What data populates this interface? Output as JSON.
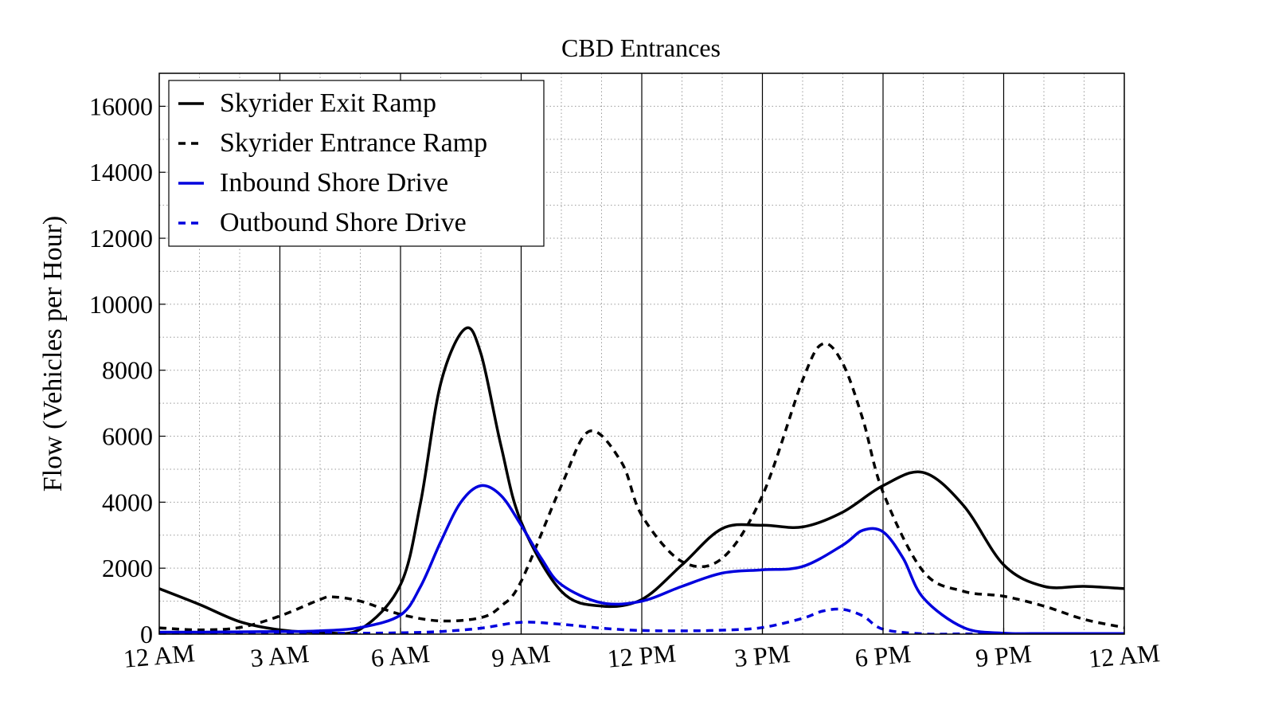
{
  "chart_data": {
    "type": "line",
    "title": "CBD Entrances",
    "xlabel": "",
    "ylabel": "Flow (Vehicles per Hour)",
    "xlim": [
      0,
      24
    ],
    "ylim": [
      0,
      17000
    ],
    "x_ticks": [
      0,
      3,
      6,
      9,
      12,
      15,
      18,
      21,
      24
    ],
    "x_tick_labels": [
      "12 AM",
      "3 AM",
      "6 AM",
      "9 AM",
      "12 PM",
      "3 PM",
      "6 PM",
      "9 PM",
      "12 AM"
    ],
    "y_ticks": [
      0,
      2000,
      4000,
      6000,
      8000,
      10000,
      12000,
      14000,
      16000
    ],
    "y_tick_labels": [
      "0",
      "2000",
      "4000",
      "6000",
      "8000",
      "10000",
      "12000",
      "14000",
      "16000"
    ],
    "grid": true,
    "legend_position": "top-left",
    "series": [
      {
        "name": "Skyrider Exit Ramp",
        "color": "#000000",
        "dash": "solid",
        "x": [
          0,
          1,
          2,
          3,
          4,
          5,
          6,
          6.5,
          7,
          7.6,
          8,
          8.5,
          9,
          10,
          11,
          12,
          13,
          14,
          15,
          16,
          17,
          18,
          19,
          20,
          21,
          22,
          23,
          24
        ],
        "y": [
          1380,
          900,
          380,
          130,
          60,
          150,
          1500,
          4000,
          7600,
          9250,
          8500,
          5700,
          3400,
          1300,
          850,
          1050,
          2100,
          3200,
          3300,
          3250,
          3700,
          4500,
          4900,
          3900,
          2100,
          1450,
          1450,
          1380
        ]
      },
      {
        "name": "Skyrider Entrance Ramp",
        "color": "#000000",
        "dash": "dashed",
        "x": [
          0,
          1,
          2,
          3,
          4,
          4.3,
          5,
          6,
          7,
          8,
          8.5,
          9,
          10,
          10.7,
          11.5,
          12,
          13,
          14,
          15,
          16,
          16.5,
          17,
          17.5,
          18,
          19,
          20,
          21,
          22,
          23,
          24
        ],
        "y": [
          190,
          130,
          200,
          550,
          1050,
          1130,
          1000,
          600,
          400,
          500,
          850,
          1600,
          4500,
          6150,
          5200,
          3600,
          2200,
          2300,
          4200,
          7700,
          8800,
          8200,
          6500,
          4300,
          1900,
          1300,
          1150,
          850,
          450,
          200
        ]
      },
      {
        "name": "Inbound Shore Drive",
        "color": "#0000dd",
        "dash": "solid",
        "x": [
          0,
          1,
          2,
          3,
          4,
          5,
          6,
          6.5,
          7,
          7.5,
          8,
          8.5,
          9,
          9.5,
          10,
          11,
          12,
          13,
          14,
          15,
          16,
          17,
          17.5,
          18,
          18.5,
          19,
          20,
          21,
          22,
          23,
          24
        ],
        "y": [
          60,
          60,
          70,
          80,
          100,
          200,
          580,
          1450,
          2800,
          4000,
          4500,
          4200,
          3300,
          2300,
          1500,
          950,
          1000,
          1450,
          1850,
          1950,
          2050,
          2700,
          3150,
          3100,
          2300,
          1100,
          200,
          30,
          20,
          20,
          20
        ]
      },
      {
        "name": "Outbound Shore Drive",
        "color": "#0000dd",
        "dash": "dashed",
        "x": [
          0,
          1,
          2,
          3,
          4,
          5,
          6,
          7,
          8,
          9,
          10,
          11,
          12,
          13,
          14,
          15,
          16,
          16.5,
          17,
          17.5,
          18,
          19,
          20,
          21,
          22,
          23,
          24
        ],
        "y": [
          30,
          30,
          30,
          30,
          30,
          30,
          40,
          80,
          180,
          360,
          300,
          180,
          110,
          100,
          120,
          200,
          480,
          700,
          750,
          550,
          150,
          10,
          10,
          10,
          10,
          10,
          10
        ]
      }
    ]
  }
}
